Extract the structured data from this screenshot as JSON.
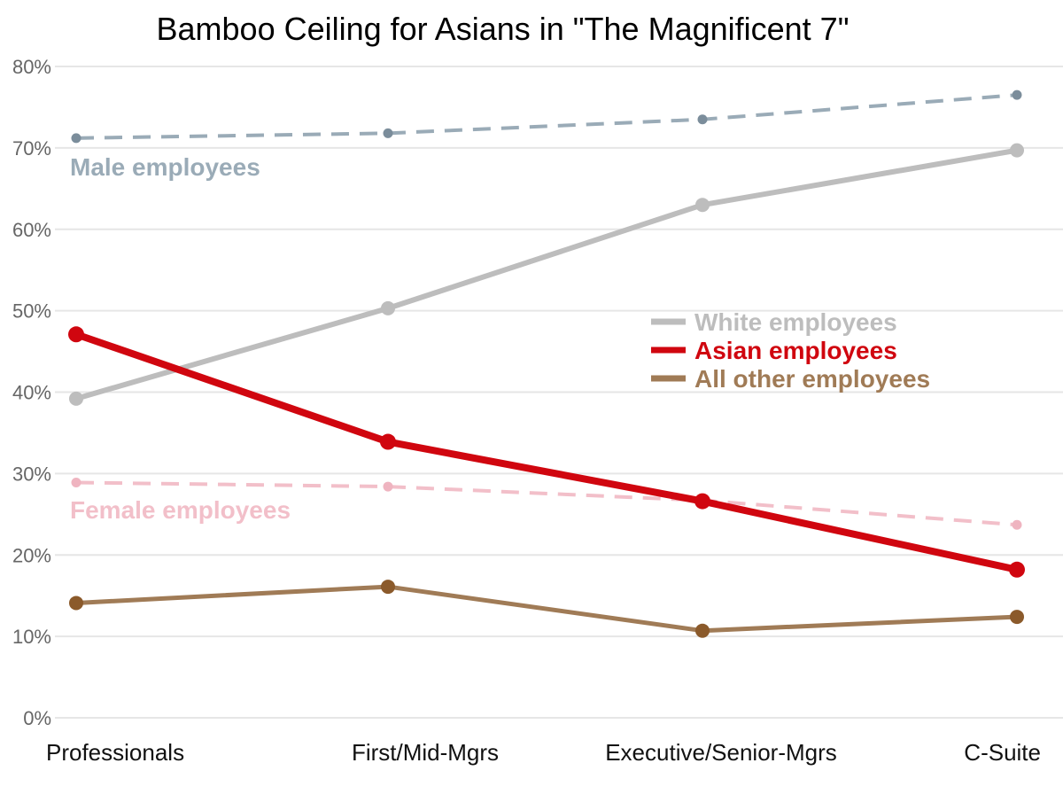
{
  "chart_data": {
    "type": "line",
    "title": "Bamboo Ceiling for Asians in \"The Magnificent 7\"",
    "xlabel": "",
    "ylabel": "",
    "categories": [
      "Professionals",
      "First/Mid-Mgrs",
      "Executive/Senior-Mgrs",
      "C-Suite"
    ],
    "ylim": [
      0,
      0.8
    ],
    "yticks": [
      0,
      0.1,
      0.2,
      0.3,
      0.4,
      0.5,
      0.6,
      0.7,
      0.8
    ],
    "ytick_labels": [
      "0%",
      "10%",
      "20%",
      "30%",
      "40%",
      "50%",
      "60%",
      "70%",
      "80%"
    ],
    "grid": "horizontal",
    "legend_position": "right-middle",
    "series": [
      {
        "name": "Male employees",
        "values": [
          0.712,
          0.718,
          0.735,
          0.765
        ],
        "color": "#9aabb7",
        "point_color": "#7b8d9b",
        "dash": true,
        "emphasis": "minor",
        "legend": false
      },
      {
        "name": "Female employees",
        "values": [
          0.289,
          0.284,
          0.267,
          0.237
        ],
        "color": "#f2bfc9",
        "point_color": "#efb4c0",
        "dash": true,
        "emphasis": "minor",
        "legend": false
      },
      {
        "name": "White employees",
        "values": [
          0.392,
          0.503,
          0.63,
          0.697
        ],
        "color": "#bdbdbd",
        "point_color": "#bdbdbd",
        "dash": false,
        "emphasis": "medium",
        "legend": true
      },
      {
        "name": "All other employees",
        "values": [
          0.141,
          0.161,
          0.107,
          0.124
        ],
        "color": "#a07b56",
        "point_color": "#8b5a2b",
        "dash": false,
        "emphasis": "thin",
        "legend": true
      },
      {
        "name": "Asian employees",
        "values": [
          0.471,
          0.339,
          0.266,
          0.182
        ],
        "color": "#d0060f",
        "point_color": "#d0060f",
        "dash": false,
        "emphasis": "major",
        "legend": true
      }
    ],
    "legend": [
      "White employees",
      "Asian employees",
      "All other employees"
    ],
    "annotations": [
      "Male employees",
      "Female employees"
    ]
  }
}
